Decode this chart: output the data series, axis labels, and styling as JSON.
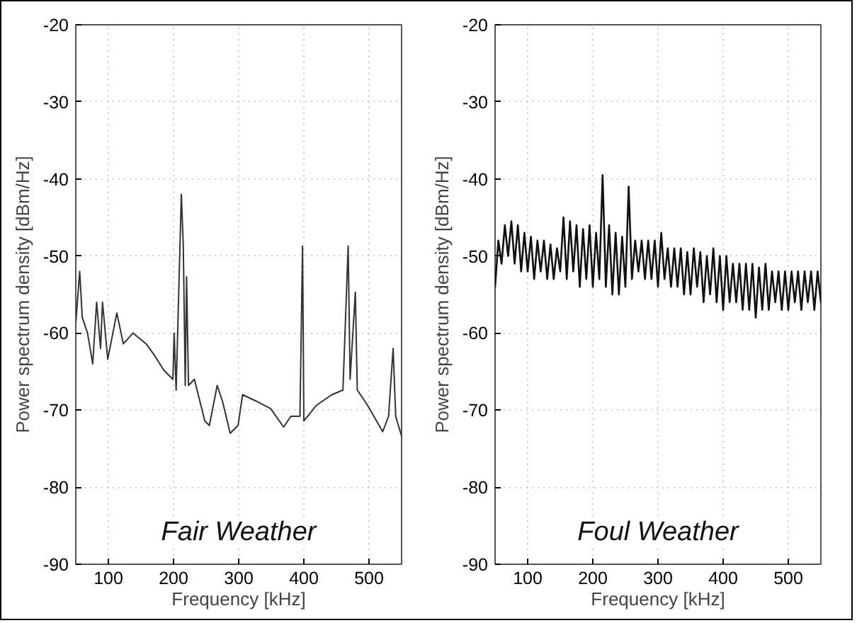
{
  "chart_data": [
    {
      "type": "line",
      "xlabel": "Frequency [kHz]",
      "ylabel": "Power spectrum density [dBm/Hz]",
      "annotations": [
        "Fair Weather"
      ],
      "xlim": [
        50,
        550
      ],
      "ylim": [
        -90,
        -20
      ],
      "xticks": [
        100,
        200,
        300,
        400,
        500
      ],
      "yticks": [
        -90,
        -80,
        -70,
        -60,
        -50,
        -40,
        -30,
        -20
      ],
      "grid": true,
      "series": [
        {
          "color": "#333333",
          "x": [
            50,
            56,
            60,
            68,
            76,
            82,
            88,
            91,
            99,
            113,
            123,
            138,
            158,
            170,
            185,
            199,
            201,
            204,
            212,
            215,
            218,
            220,
            223,
            232,
            248,
            255,
            267,
            275,
            287,
            299,
            306,
            326,
            349,
            369,
            380,
            394,
            398,
            400,
            419,
            443,
            460,
            468,
            471,
            479,
            482,
            498,
            521,
            530,
            537,
            541,
            550
          ],
          "values": [
            -58.7,
            -52,
            -58,
            -60,
            -64,
            -56,
            -62,
            -56,
            -63.4,
            -57.4,
            -61.4,
            -60,
            -61.4,
            -62.8,
            -64.8,
            -66,
            -60,
            -67.4,
            -42,
            -48.7,
            -66.8,
            -52.7,
            -66.8,
            -66,
            -71.4,
            -72,
            -66.8,
            -68.8,
            -73,
            -72,
            -68,
            -68.8,
            -69.8,
            -72.2,
            -70.8,
            -70.8,
            -48.7,
            -71.4,
            -69.4,
            -68,
            -67.4,
            -48.7,
            -66,
            -54.7,
            -67.4,
            -69.4,
            -72.8,
            -70.8,
            -62,
            -70.8,
            -73.4
          ]
        }
      ]
    },
    {
      "type": "line",
      "xlabel": "Frequency [kHz]",
      "ylabel": "Power spectrum density [dBm/Hz]",
      "annotations": [
        "Foul Weather"
      ],
      "xlim": [
        50,
        550
      ],
      "ylim": [
        -90,
        -20
      ],
      "xticks": [
        100,
        200,
        300,
        400,
        500
      ],
      "yticks": [
        -90,
        -80,
        -70,
        -60,
        -50,
        -40,
        -30,
        -20
      ],
      "grid": true,
      "series": [
        {
          "color": "#111111",
          "x": [
            50,
            55,
            60,
            65,
            70,
            75,
            80,
            85,
            90,
            95,
            100,
            105,
            110,
            115,
            120,
            125,
            130,
            135,
            140,
            145,
            150,
            155,
            160,
            165,
            170,
            175,
            180,
            185,
            190,
            195,
            200,
            205,
            210,
            215,
            220,
            225,
            230,
            235,
            240,
            245,
            250,
            255,
            260,
            265,
            270,
            275,
            280,
            285,
            290,
            295,
            300,
            305,
            310,
            315,
            320,
            325,
            330,
            335,
            340,
            345,
            350,
            355,
            360,
            365,
            370,
            375,
            380,
            385,
            390,
            395,
            400,
            405,
            410,
            415,
            420,
            425,
            430,
            435,
            440,
            445,
            450,
            455,
            460,
            465,
            470,
            475,
            480,
            485,
            490,
            495,
            500,
            505,
            510,
            515,
            520,
            525,
            530,
            535,
            540,
            545,
            550
          ],
          "values": [
            -54,
            -48,
            -51,
            -46,
            -50,
            -45.5,
            -51,
            -46,
            -52,
            -47,
            -52,
            -47.5,
            -53,
            -48,
            -52,
            -48,
            -53,
            -48.5,
            -53,
            -49,
            -52,
            -45,
            -53,
            -45.5,
            -52,
            -46,
            -54,
            -46.5,
            -53,
            -46,
            -54,
            -47,
            -53,
            -39.5,
            -54,
            -46,
            -55,
            -47,
            -55,
            -47.5,
            -54,
            -41,
            -53,
            -48,
            -52,
            -48,
            -53,
            -48,
            -53,
            -48,
            -54,
            -47,
            -53,
            -49,
            -54,
            -49,
            -54,
            -49,
            -55,
            -49.5,
            -55,
            -49,
            -54,
            -49.5,
            -56,
            -50,
            -55,
            -49,
            -56,
            -50,
            -57,
            -50,
            -56,
            -51,
            -56,
            -51,
            -57,
            -51,
            -57,
            -51,
            -58,
            -51.5,
            -57,
            -51,
            -57,
            -52,
            -56,
            -52,
            -57,
            -52,
            -57,
            -52,
            -56,
            -52,
            -57,
            -52,
            -56,
            -52,
            -57,
            -52,
            -56
          ]
        }
      ]
    }
  ]
}
